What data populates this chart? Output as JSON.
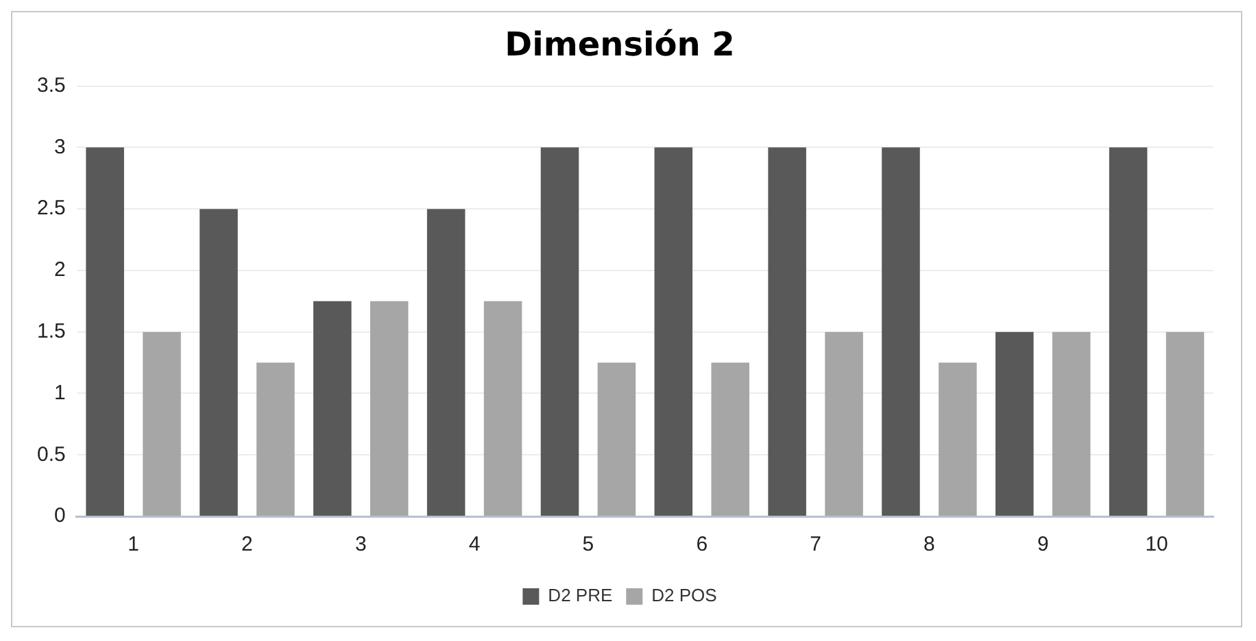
{
  "chart_data": {
    "type": "bar",
    "title": "Dimensión 2",
    "categories": [
      "1",
      "2",
      "3",
      "4",
      "5",
      "6",
      "7",
      "8",
      "9",
      "10"
    ],
    "series": [
      {
        "name": "D2 PRE",
        "color": "#595959",
        "values": [
          3,
          2.5,
          1.75,
          2.5,
          3,
          3,
          3,
          3,
          1.5,
          3
        ]
      },
      {
        "name": "D2 POS",
        "color": "#a6a6a6",
        "values": [
          1.5,
          1.25,
          1.75,
          1.75,
          1.25,
          1.25,
          1.5,
          1.25,
          1.5,
          1.5
        ]
      }
    ],
    "ylim": [
      0,
      3.5
    ],
    "yticks": [
      0,
      0.5,
      1,
      1.5,
      2,
      2.5,
      3,
      3.5
    ],
    "grid": "y",
    "legend": "bottom"
  }
}
